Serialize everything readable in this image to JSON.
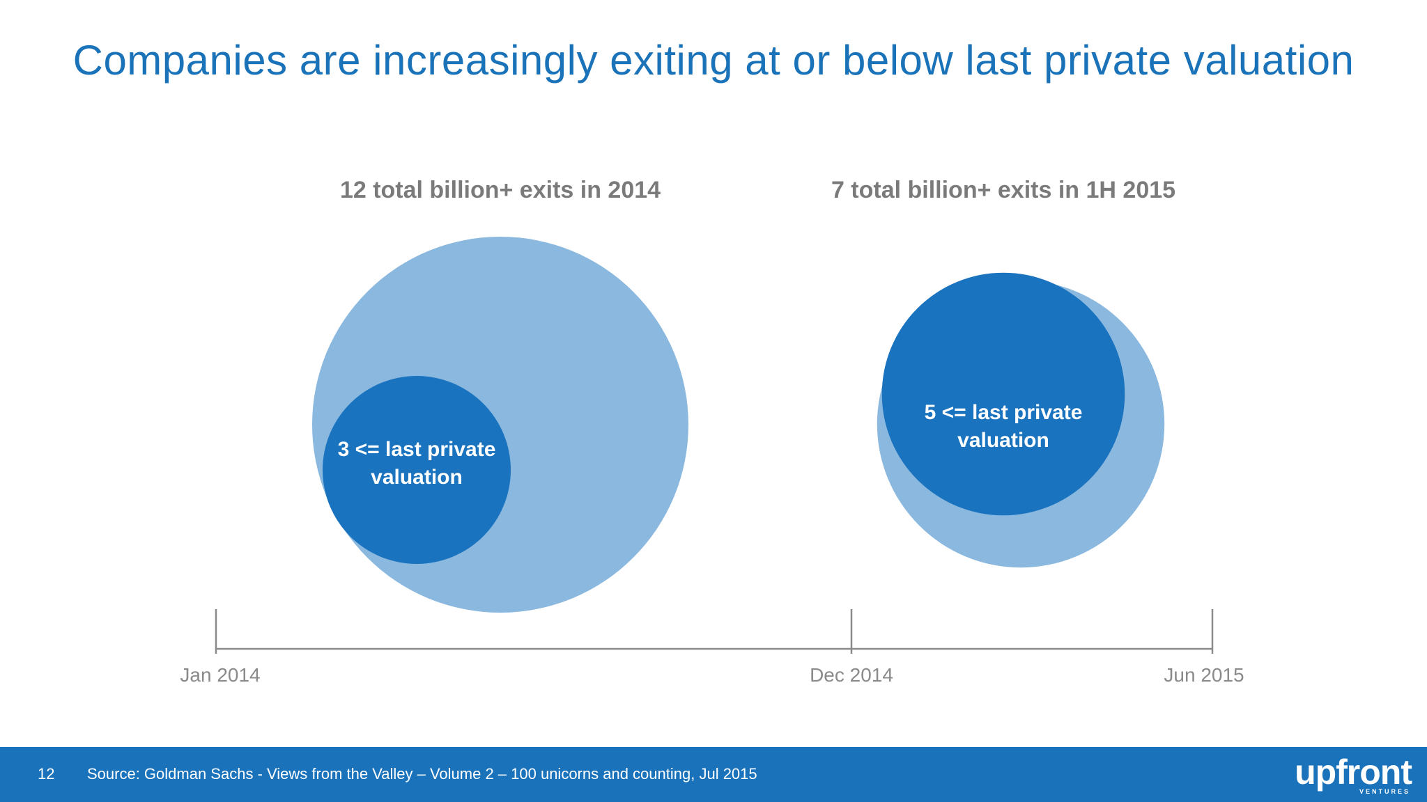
{
  "slide": {
    "title": "Companies are increasingly exiting at or below last private valuation",
    "page_number": "12",
    "source": "Source: Goldman Sachs - Views from the Valley – Volume 2 – 100 unicorns and counting, Jul 2015",
    "logo_text": "upfront",
    "logo_subtext": "VENTURES"
  },
  "colors": {
    "title": "#1a73b8",
    "outer_bubble": "#8bb8df",
    "inner_bubble": "#1a73bf",
    "heading_text": "#7a7a7a",
    "axis": "#8a8a8a",
    "tick_label": "#8a8a8a",
    "footer_bg": "#1a72bb",
    "label_text": "#ffffff"
  },
  "chart_data": {
    "type": "bubble",
    "timeline": {
      "ticks": [
        "Jan 2014",
        "Dec 2014",
        "Jun 2015"
      ]
    },
    "groups": [
      {
        "heading": "12 total billion+ exits in 2014",
        "period": "2014",
        "total": 12,
        "subset": 3,
        "subset_label": [
          "3 <= last private",
          "valuation"
        ]
      },
      {
        "heading": "7 total billion+ exits in 1H 2015",
        "period": "1H 2015",
        "total": 7,
        "subset": 5,
        "subset_label": [
          "5 <= last private",
          "valuation"
        ]
      }
    ]
  }
}
